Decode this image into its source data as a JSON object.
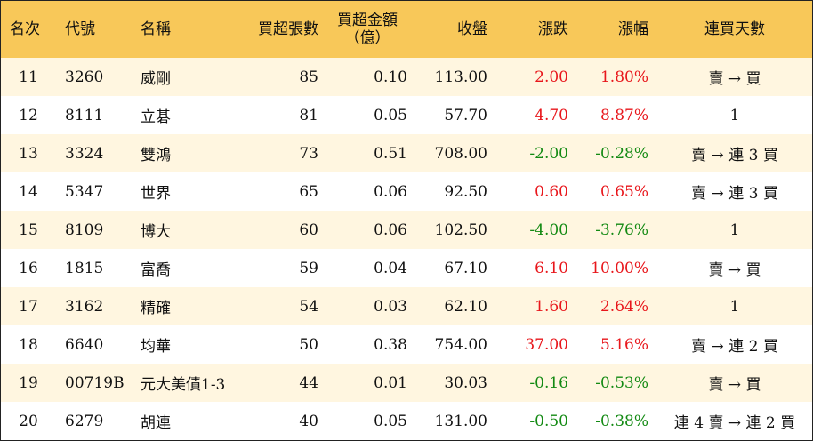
{
  "headers": {
    "rank": "名次",
    "code": "代號",
    "name": "名稱",
    "net_lots": "買超張數",
    "net_amount_line1": "買超金額",
    "net_amount_line2": "（億）",
    "close": "收盤",
    "change": "漲跌",
    "change_pct": "漲幅",
    "consec_days": "連買天數"
  },
  "colors": {
    "header_bg": "#f8c859",
    "row_alt_bg": "#fff6e0",
    "up": "#e8161b",
    "down": "#138a13"
  },
  "rows": [
    {
      "rank": "11",
      "code": "3260",
      "name": "威剛",
      "net_lots": "85",
      "net_amount": "0.10",
      "close": "113.00",
      "change": "2.00",
      "change_pct": "1.80%",
      "dir": "up",
      "consec_days": "賣 → 買"
    },
    {
      "rank": "12",
      "code": "8111",
      "name": "立碁",
      "net_lots": "81",
      "net_amount": "0.05",
      "close": "57.70",
      "change": "4.70",
      "change_pct": "8.87%",
      "dir": "up",
      "consec_days": "1"
    },
    {
      "rank": "13",
      "code": "3324",
      "name": "雙鴻",
      "net_lots": "73",
      "net_amount": "0.51",
      "close": "708.00",
      "change": "-2.00",
      "change_pct": "-0.28%",
      "dir": "down",
      "consec_days": "賣 → 連 3 買"
    },
    {
      "rank": "14",
      "code": "5347",
      "name": "世界",
      "net_lots": "65",
      "net_amount": "0.06",
      "close": "92.50",
      "change": "0.60",
      "change_pct": "0.65%",
      "dir": "up",
      "consec_days": "賣 → 連 3 買"
    },
    {
      "rank": "15",
      "code": "8109",
      "name": "博大",
      "net_lots": "60",
      "net_amount": "0.06",
      "close": "102.50",
      "change": "-4.00",
      "change_pct": "-3.76%",
      "dir": "down",
      "consec_days": "1"
    },
    {
      "rank": "16",
      "code": "1815",
      "name": "富喬",
      "net_lots": "59",
      "net_amount": "0.04",
      "close": "67.10",
      "change": "6.10",
      "change_pct": "10.00%",
      "dir": "up",
      "consec_days": "賣 → 買"
    },
    {
      "rank": "17",
      "code": "3162",
      "name": "精確",
      "net_lots": "54",
      "net_amount": "0.03",
      "close": "62.10",
      "change": "1.60",
      "change_pct": "2.64%",
      "dir": "up",
      "consec_days": "1"
    },
    {
      "rank": "18",
      "code": "6640",
      "name": "均華",
      "net_lots": "50",
      "net_amount": "0.38",
      "close": "754.00",
      "change": "37.00",
      "change_pct": "5.16%",
      "dir": "up",
      "consec_days": "賣 → 連 2 買"
    },
    {
      "rank": "19",
      "code": "00719B",
      "name": "元大美債1-3",
      "net_lots": "44",
      "net_amount": "0.01",
      "close": "30.03",
      "change": "-0.16",
      "change_pct": "-0.53%",
      "dir": "down",
      "consec_days": "賣 → 買"
    },
    {
      "rank": "20",
      "code": "6279",
      "name": "胡連",
      "net_lots": "40",
      "net_amount": "0.05",
      "close": "131.00",
      "change": "-0.50",
      "change_pct": "-0.38%",
      "dir": "down",
      "consec_days": "連 4 賣 → 連 2 買"
    }
  ]
}
